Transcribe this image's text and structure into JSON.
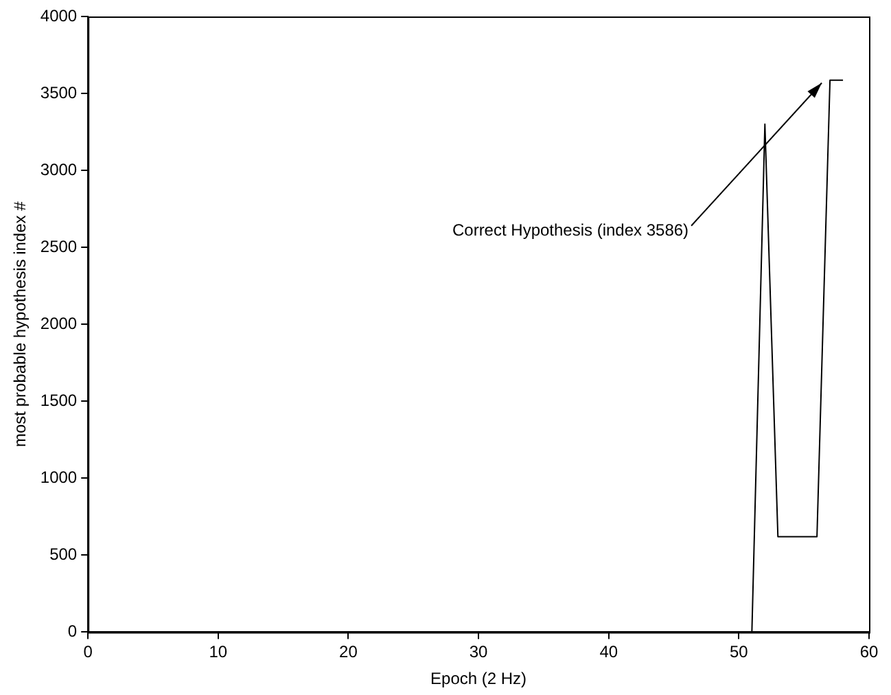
{
  "chart_data": {
    "type": "line",
    "xlabel": "Epoch (2 Hz)",
    "ylabel": "most probable hypothesis index #",
    "x": [
      51,
      52,
      53,
      56,
      57,
      58
    ],
    "series": [
      {
        "color": "#000000",
        "values": [
          0,
          3300,
          620,
          620,
          3586,
          3586
        ]
      }
    ],
    "xlim": [
      0,
      60
    ],
    "xticks": [
      0,
      10,
      20,
      30,
      40,
      50,
      60
    ],
    "ylim": [
      0,
      4000
    ],
    "yticks": [
      0,
      500,
      1000,
      1500,
      2000,
      2500,
      3000,
      3500,
      4000
    ],
    "grid": false,
    "legend": false,
    "marker": "none",
    "line_style": "solid",
    "annotations": [
      {
        "text": "Correct Hypothesis (index 3586)",
        "x": 57,
        "y": 3586
      }
    ]
  }
}
